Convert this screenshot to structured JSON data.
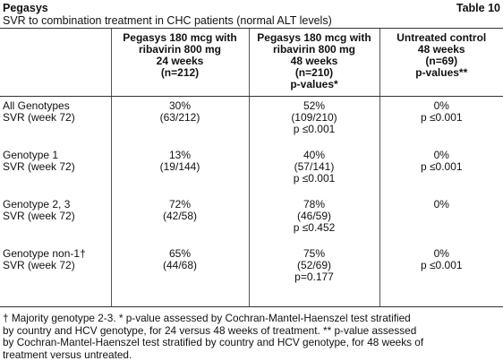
{
  "header": {
    "title": "Pegasys",
    "table_number": "Table 10",
    "subtitle": "SVR to combination treatment in CHC patients (normal ALT levels)"
  },
  "table": {
    "columns": [
      [
        "Pegasys 180 mcg with",
        "ribavirin 800 mg",
        "24 weeks",
        "(n=212)"
      ],
      [
        "Pegasys 180 mcg with",
        "ribavirin 800 mg",
        "48 weeks",
        "(n=210)",
        "p-values*"
      ],
      [
        "Untreated control",
        "48 weeks",
        "(n=69)",
        "p-values**"
      ]
    ],
    "rows": [
      [
        [
          "All Genotypes",
          "SVR (week 72)"
        ],
        [
          "30%",
          "(63/212)"
        ],
        [
          "52%",
          "(109/210)",
          "p ≤0.001"
        ],
        [
          "0%",
          "p ≤0.001"
        ]
      ],
      [
        [
          "Genotype 1",
          "SVR (week 72)"
        ],
        [
          "13%",
          "(19/144)"
        ],
        [
          "40%",
          "(57/141)",
          "p ≤0.001"
        ],
        [
          "0%",
          "p ≤0.001"
        ]
      ],
      [
        [
          "Genotype 2, 3",
          "SVR (week 72)"
        ],
        [
          "72%",
          "(42/58)"
        ],
        [
          "78%",
          "(46/59)",
          "p ≤0.452"
        ],
        [
          "0%"
        ]
      ],
      [
        [
          "Genotype non-1†",
          "SVR (week 72)"
        ],
        [
          "65%",
          "(44/68)"
        ],
        [
          "75%",
          "(52/69)",
          "p=0.177"
        ],
        [
          "0%",
          "p ≤0.001"
        ]
      ]
    ]
  },
  "footnote": [
    "† Majority genotype 2-3. * p-value assessed by Cochran-Mantel-Haenszel test stratified",
    "by country and HCV genotype, for 24 versus 48 weeks of treatment. ** p-value assessed",
    "by Cochran-Mantel-Haenszel test stratified by country and HCV genotype, for 48 weeks of",
    "treatment versus untreated."
  ]
}
